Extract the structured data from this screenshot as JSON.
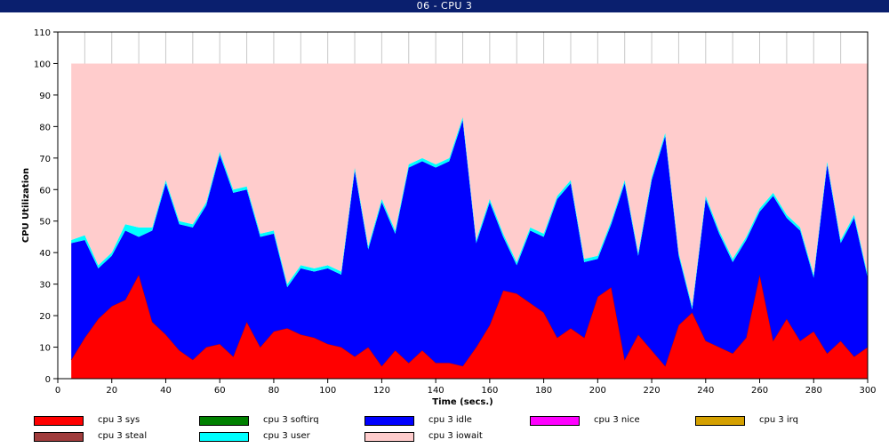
{
  "window": {
    "title": "06 - CPU 3"
  },
  "chart_data": {
    "type": "area",
    "stacked": true,
    "xlabel": "Time (secs.)",
    "ylabel": "CPU Utilization",
    "xlim": [
      0,
      300
    ],
    "ylim": [
      0,
      110
    ],
    "xticks": [
      0,
      20,
      40,
      60,
      80,
      100,
      120,
      140,
      160,
      180,
      200,
      220,
      240,
      260,
      280,
      300
    ],
    "yticks": [
      0,
      10,
      20,
      30,
      40,
      50,
      60,
      70,
      80,
      90,
      100,
      110
    ],
    "grid": "vertical",
    "legend_position": "bottom",
    "x": [
      5,
      10,
      15,
      20,
      25,
      30,
      35,
      40,
      45,
      50,
      55,
      60,
      65,
      70,
      75,
      80,
      85,
      90,
      95,
      100,
      105,
      110,
      115,
      120,
      125,
      130,
      135,
      140,
      145,
      150,
      155,
      160,
      165,
      170,
      175,
      180,
      185,
      190,
      195,
      200,
      205,
      210,
      215,
      220,
      225,
      230,
      235,
      240,
      245,
      250,
      255,
      260,
      265,
      270,
      275,
      280,
      285,
      290,
      295,
      300
    ],
    "series": [
      {
        "name": "cpu 3 sys",
        "color": "#ff0000",
        "values": [
          6,
          13,
          19,
          23,
          25,
          33,
          18,
          14,
          9,
          6,
          10,
          11,
          7,
          18,
          10,
          15,
          16,
          14,
          13,
          11,
          10,
          7,
          10,
          4,
          9,
          5,
          9,
          5,
          5,
          4,
          10,
          17,
          28,
          27,
          24,
          21,
          13,
          16,
          13,
          26,
          29,
          6,
          14,
          9,
          4,
          17,
          21,
          12,
          10,
          8,
          13,
          33,
          12,
          19,
          12,
          15,
          8,
          12,
          7,
          10
        ]
      },
      {
        "name": "cpu 3 softirq",
        "color": "#008000",
        "values": [
          0,
          0,
          0,
          0,
          0,
          0,
          0,
          0,
          0,
          0,
          0,
          0,
          0,
          0,
          0,
          0,
          0,
          0,
          0,
          0,
          0,
          0,
          0,
          0,
          0,
          0,
          0,
          0,
          0,
          0,
          0,
          0,
          0,
          0,
          0,
          0,
          0,
          0,
          0,
          0,
          0,
          0,
          0,
          0,
          0,
          0,
          0,
          0,
          0,
          0,
          0,
          0,
          0,
          0,
          0,
          0,
          0,
          0,
          0,
          0
        ]
      },
      {
        "name": "cpu 3 idle",
        "color": "#0000ff",
        "values": [
          37,
          31,
          16,
          16,
          22,
          12,
          29,
          48,
          40,
          42,
          45,
          60,
          52,
          42,
          35,
          31,
          13,
          21,
          21,
          24,
          23,
          59,
          31,
          52,
          37,
          62,
          60,
          62,
          64,
          78,
          33,
          39,
          17,
          9,
          23,
          24,
          44,
          46,
          24,
          12,
          20,
          56,
          25,
          54,
          73,
          22,
          1,
          45,
          36,
          29,
          31,
          20,
          46,
          32,
          35,
          17,
          60,
          31,
          44,
          22
        ]
      },
      {
        "name": "cpu 3 nice",
        "color": "#ff00ff",
        "values": [
          0,
          0,
          0,
          0,
          0,
          0,
          0,
          0,
          0,
          0,
          0,
          0,
          0,
          0,
          0,
          0,
          0,
          0,
          0,
          0,
          0,
          0,
          0,
          0,
          0,
          0,
          0,
          0,
          0,
          0,
          0,
          0,
          0,
          0,
          0,
          0,
          0,
          0,
          0,
          0,
          0,
          0,
          0,
          0,
          0,
          0,
          0,
          0,
          0,
          0,
          0,
          0,
          0,
          0,
          0,
          0,
          0,
          0,
          0,
          0
        ]
      },
      {
        "name": "cpu 3 irq",
        "color": "#d4a000",
        "values": [
          0,
          0,
          0,
          0,
          0,
          0,
          0,
          0,
          0,
          0,
          0,
          0,
          0,
          0,
          0,
          0,
          0,
          0,
          0,
          0,
          0,
          0,
          0,
          0,
          0,
          0,
          0,
          0,
          0,
          0,
          0,
          0,
          0,
          0,
          0,
          0,
          0,
          0,
          0,
          0,
          0,
          0,
          0,
          0,
          0,
          0,
          0,
          0,
          0,
          0,
          0,
          0,
          0,
          0,
          0,
          0,
          0,
          0,
          0,
          0
        ]
      },
      {
        "name": "cpu 3 steal",
        "color": "#a03c3c",
        "values": [
          0,
          0,
          0,
          0,
          0,
          0,
          0,
          0,
          0,
          0,
          0,
          0,
          0,
          0,
          0,
          0,
          0,
          0,
          0,
          0,
          0,
          0,
          0,
          0,
          0,
          0,
          0,
          0,
          0,
          0,
          0,
          0,
          0,
          0,
          0,
          0,
          0,
          0,
          0,
          0,
          0,
          0,
          0,
          0,
          0,
          0,
          0,
          0,
          0,
          0,
          0,
          0,
          0,
          0,
          0,
          0,
          0,
          0,
          0,
          0
        ]
      },
      {
        "name": "cpu 3 user",
        "color": "#00ffff",
        "values": [
          1,
          1.5,
          1,
          1,
          2,
          3,
          1,
          1,
          1,
          1,
          1,
          1,
          1,
          1,
          1,
          1,
          1,
          1,
          1,
          1,
          1,
          1,
          1,
          1,
          1,
          1,
          1,
          1,
          1,
          1,
          1,
          1,
          1,
          1,
          1,
          1,
          1,
          1,
          1,
          1,
          1,
          1,
          1,
          1,
          1,
          1,
          1,
          1,
          1,
          1,
          1,
          1,
          1,
          1,
          1,
          1,
          1,
          1,
          1,
          1
        ]
      },
      {
        "name": "cpu 3 iowait",
        "color": "#ffcccc",
        "values": [
          56,
          54.5,
          64,
          60,
          51,
          52,
          52,
          37,
          50,
          51,
          44,
          28,
          40,
          39,
          54,
          53,
          70,
          64,
          65,
          64,
          66,
          33,
          58,
          43,
          53,
          32,
          30,
          32,
          30,
          17,
          56,
          43,
          54,
          63,
          52,
          54,
          42,
          37,
          62,
          61,
          50,
          37,
          60,
          36,
          22,
          60,
          77,
          42,
          53,
          62,
          55,
          46,
          41,
          48,
          52,
          67,
          31,
          56,
          48,
          67
        ]
      }
    ]
  },
  "legend": [
    {
      "label": "cpu 3 sys",
      "color": "#ff0000"
    },
    {
      "label": "cpu 3 softirq",
      "color": "#008000"
    },
    {
      "label": "cpu 3 idle",
      "color": "#0000ff"
    },
    {
      "label": "cpu 3 nice",
      "color": "#ff00ff"
    },
    {
      "label": "cpu 3 irq",
      "color": "#d4a000"
    },
    {
      "label": "cpu 3 steal",
      "color": "#a03c3c"
    },
    {
      "label": "cpu 3 user",
      "color": "#00ffff"
    },
    {
      "label": "cpu 3 iowait",
      "color": "#ffcccc"
    }
  ]
}
